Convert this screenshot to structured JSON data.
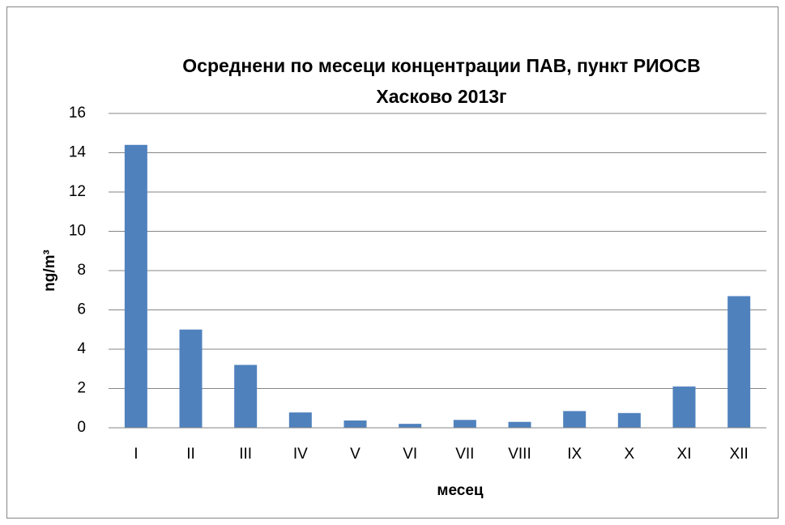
{
  "chart_data": {
    "type": "bar",
    "title": "Осреднени по месеци концентрации ПАВ, пункт РИОСВ Хасково 2013г",
    "x_label": "месец",
    "y_label": "ng/m³",
    "categories": [
      "I",
      "II",
      "III",
      "IV",
      "V",
      "VI",
      "VII",
      "VIII",
      "IX",
      "X",
      "XI",
      "XII"
    ],
    "values": [
      14.4,
      5.0,
      3.2,
      0.78,
      0.37,
      0.2,
      0.4,
      0.3,
      0.85,
      0.75,
      2.1,
      6.7
    ],
    "color": "#4f81bd",
    "ylim": [
      0,
      16
    ],
    "yticks": [
      0,
      2,
      4,
      6,
      8,
      10,
      12,
      14,
      16
    ],
    "grid": true
  }
}
